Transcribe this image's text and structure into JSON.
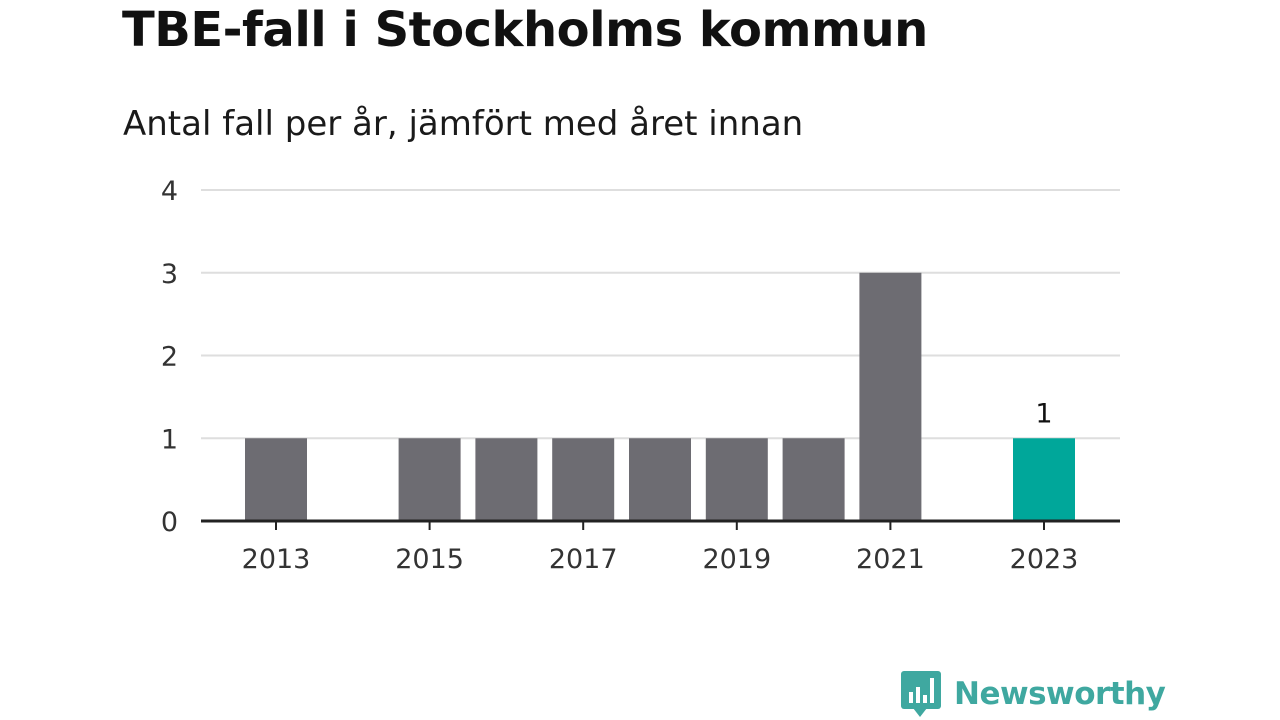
{
  "title": "TBE-fall i Stockholms kommun",
  "subtitle": "Antal fall per år, jämfört med året innan",
  "brand": {
    "name": "Newsworthy",
    "icon": "bar-chart-speech-bubble-icon"
  },
  "colors": {
    "bar": "#6d6c72",
    "highlight": "#00a79a",
    "grid": "#dedede",
    "axis": "#222222",
    "text": "#333333",
    "brand": "#3fa8a0"
  },
  "chart_data": {
    "type": "bar",
    "categories": [
      "2013",
      "2014",
      "2015",
      "2016",
      "2017",
      "2018",
      "2019",
      "2020",
      "2021",
      "2022",
      "2023"
    ],
    "values": [
      1,
      null,
      1,
      1,
      1,
      1,
      1,
      1,
      3,
      null,
      1
    ],
    "highlight_index": 10,
    "x_tick_labels": [
      "2013",
      "2015",
      "2017",
      "2019",
      "2021",
      "2023"
    ],
    "y_ticks": [
      0,
      1,
      2,
      3,
      4
    ],
    "ylim": [
      0,
      4
    ],
    "data_labels": [
      {
        "category": "2023",
        "text": "1"
      }
    ],
    "grid": true,
    "xlabel": "",
    "ylabel": ""
  }
}
